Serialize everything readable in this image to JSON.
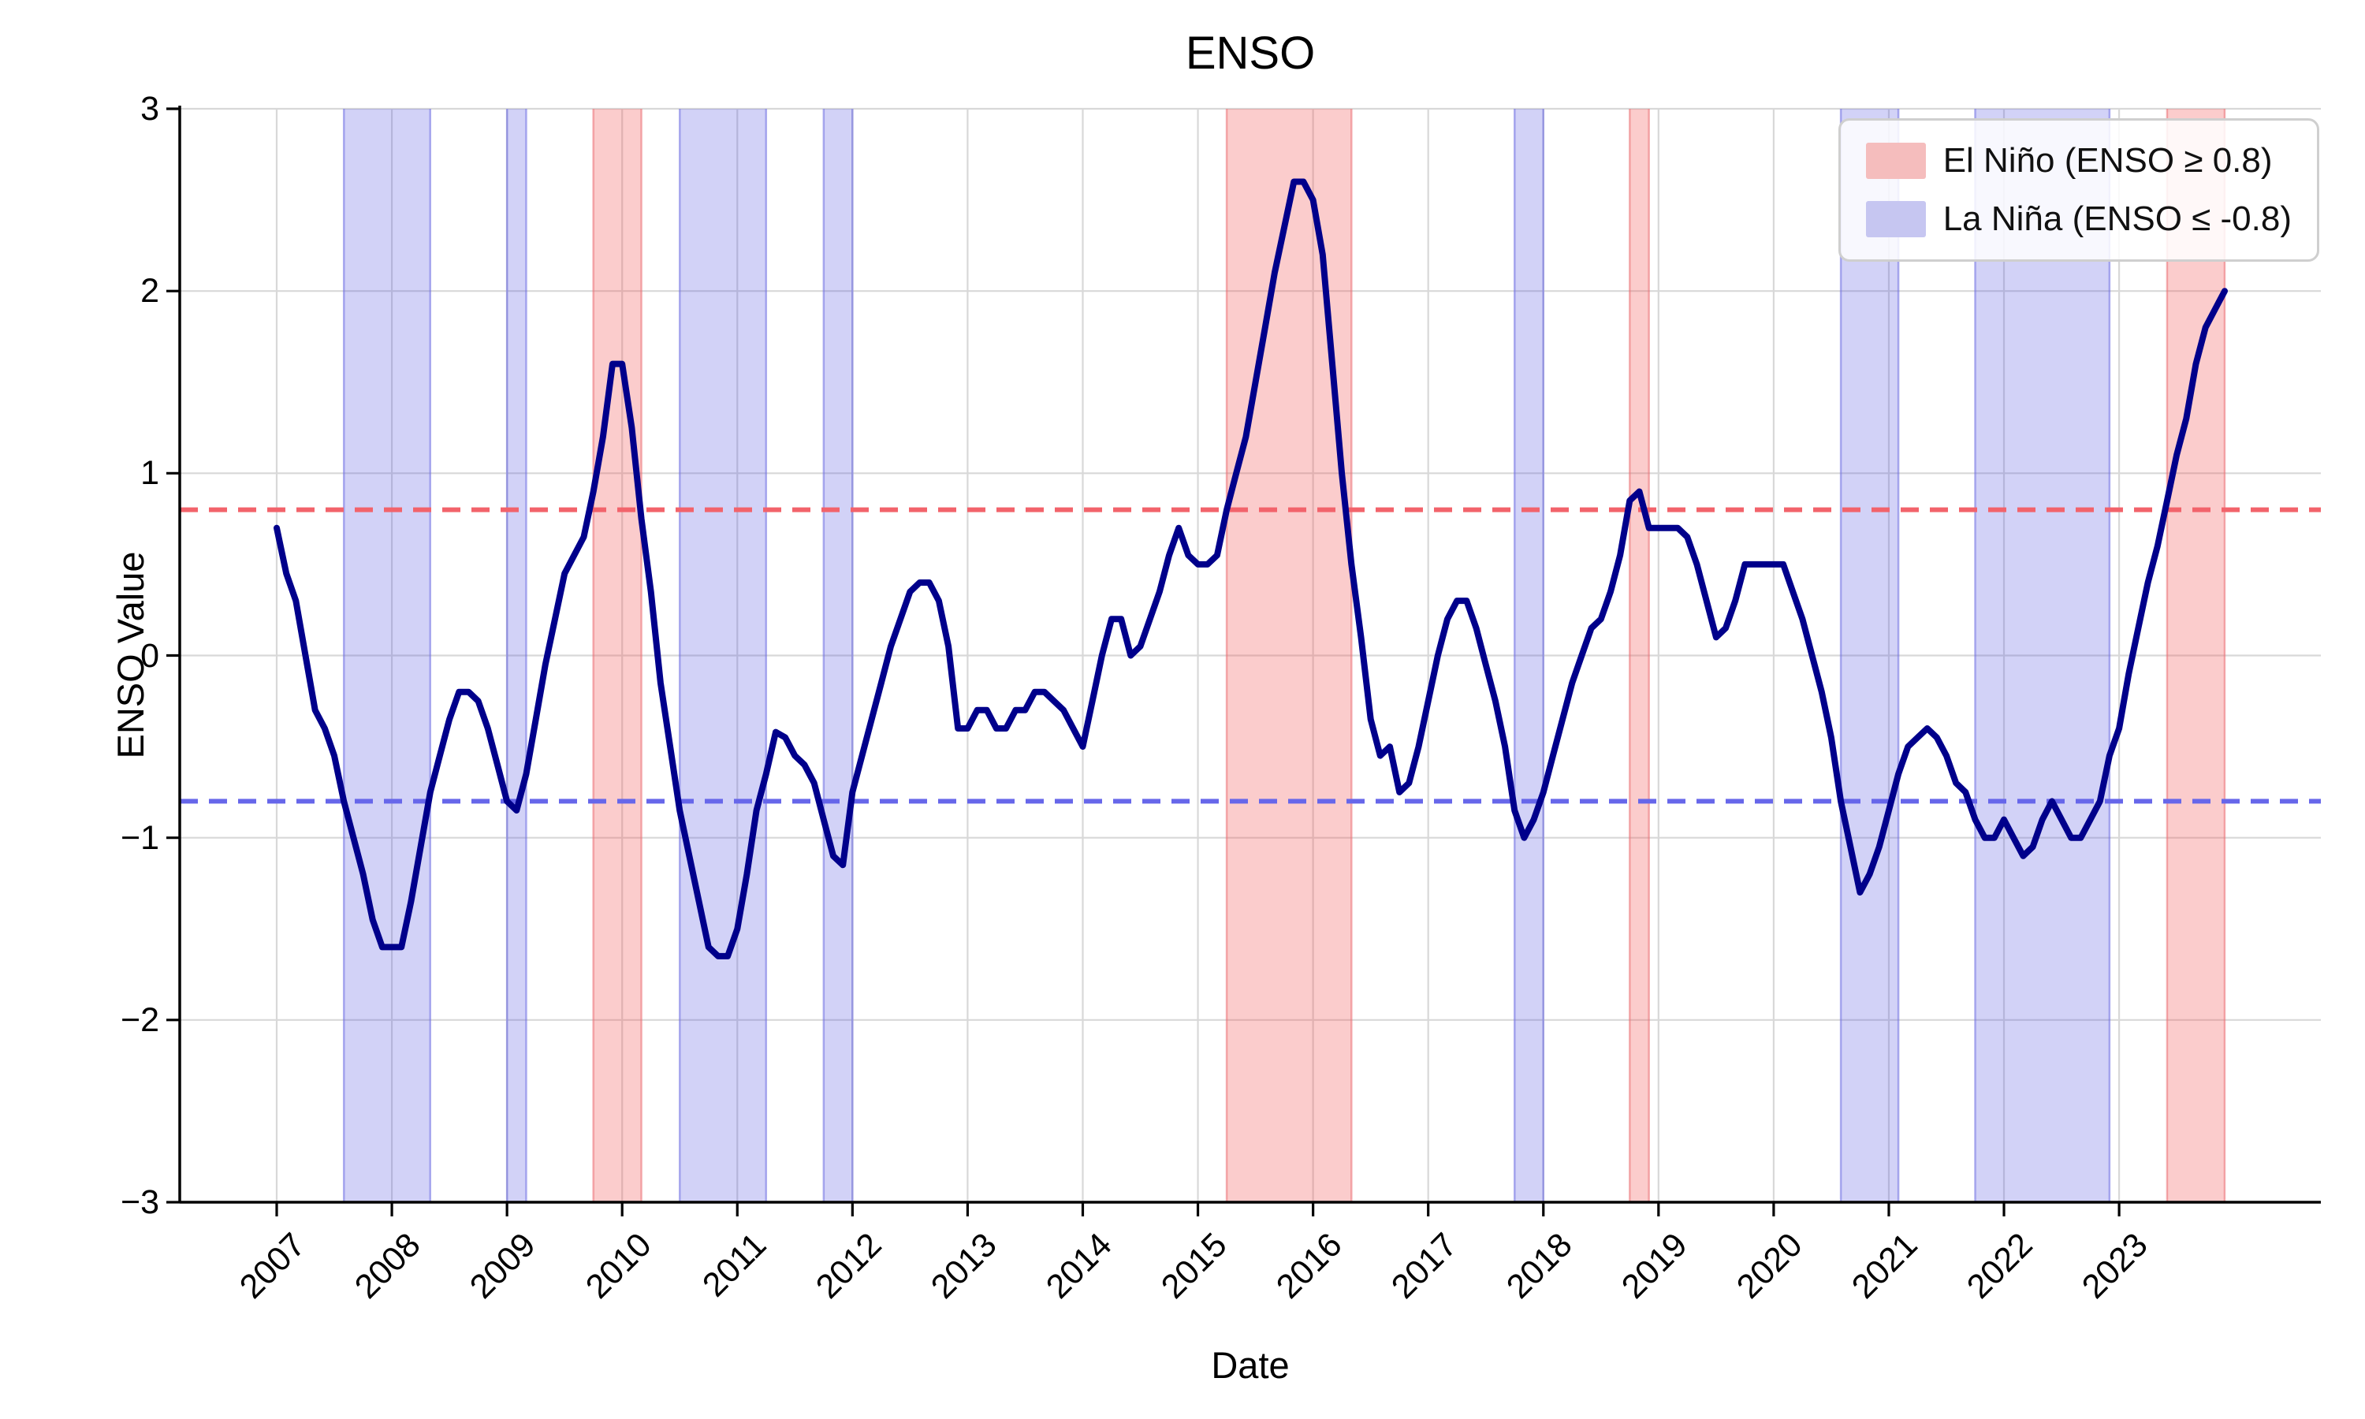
{
  "chart_data": {
    "type": "line",
    "title": "ENSO",
    "xlabel": "Date",
    "ylabel": "ENSO Value",
    "ylim": [
      -3,
      3
    ],
    "grid": true,
    "legend_position": "upper right",
    "start_month": "2007-01",
    "end_month": "2023-12",
    "monthly_values": [
      0.7,
      0.45,
      0.3,
      0.0,
      -0.3,
      -0.4,
      -0.55,
      -0.8,
      -1.0,
      -1.2,
      -1.45,
      -1.6,
      -1.6,
      -1.6,
      -1.35,
      -1.05,
      -0.75,
      -0.55,
      -0.35,
      -0.2,
      -0.2,
      -0.25,
      -0.4,
      -0.6,
      -0.8,
      -0.85,
      -0.65,
      -0.35,
      -0.05,
      0.2,
      0.45,
      0.55,
      0.65,
      0.9,
      1.2,
      1.6,
      1.6,
      1.25,
      0.75,
      0.35,
      -0.15,
      -0.5,
      -0.85,
      -1.1,
      -1.35,
      -1.6,
      -1.65,
      -1.65,
      -1.5,
      -1.2,
      -0.85,
      -0.65,
      -0.42,
      -0.45,
      -0.55,
      -0.6,
      -0.7,
      -0.9,
      -1.1,
      -1.15,
      -0.75,
      -0.55,
      -0.35,
      -0.15,
      0.05,
      0.2,
      0.35,
      0.4,
      0.4,
      0.3,
      0.05,
      -0.4,
      -0.4,
      -0.3,
      -0.3,
      -0.4,
      -0.4,
      -0.3,
      -0.3,
      -0.2,
      -0.2,
      -0.25,
      -0.3,
      -0.4,
      -0.5,
      -0.25,
      0.0,
      0.2,
      0.2,
      0.0,
      0.05,
      0.2,
      0.35,
      0.55,
      0.7,
      0.55,
      0.5,
      0.5,
      0.55,
      0.8,
      1.0,
      1.2,
      1.5,
      1.8,
      2.1,
      2.35,
      2.6,
      2.6,
      2.5,
      2.2,
      1.6,
      1.0,
      0.5,
      0.1,
      -0.35,
      -0.55,
      -0.5,
      -0.75,
      -0.7,
      -0.5,
      -0.25,
      0.0,
      0.2,
      0.3,
      0.3,
      0.15,
      -0.05,
      -0.25,
      -0.5,
      -0.85,
      -1.0,
      -0.9,
      -0.75,
      -0.55,
      -0.35,
      -0.15,
      0.0,
      0.15,
      0.2,
      0.35,
      0.55,
      0.85,
      0.9,
      0.7,
      0.7,
      0.7,
      0.7,
      0.65,
      0.5,
      0.3,
      0.1,
      0.15,
      0.3,
      0.5,
      0.5,
      0.5,
      0.5,
      0.5,
      0.35,
      0.2,
      0.0,
      -0.2,
      -0.45,
      -0.8,
      -1.05,
      -1.3,
      -1.2,
      -1.05,
      -0.85,
      -0.65,
      -0.5,
      -0.45,
      -0.4,
      -0.45,
      -0.55,
      -0.7,
      -0.75,
      -0.9,
      -1.0,
      -1.0,
      -0.9,
      -1.0,
      -1.1,
      -1.05,
      -0.9,
      -0.8,
      -0.9,
      -1.0,
      -1.0,
      -0.9,
      -0.8,
      -0.55,
      -0.4,
      -0.1,
      0.15,
      0.4,
      0.6,
      0.85,
      1.1,
      1.3,
      1.6,
      1.8,
      1.9,
      2.0
    ],
    "x_tick_labels": [
      "2007",
      "2008",
      "2009",
      "2010",
      "2011",
      "2012",
      "2013",
      "2014",
      "2015",
      "2016",
      "2017",
      "2018",
      "2019",
      "2020",
      "2021",
      "2022",
      "2023"
    ],
    "y_tick_values": [
      3,
      2,
      1,
      0,
      -1,
      -2,
      -3
    ],
    "y_tick_labels": [
      "3",
      "2",
      "1",
      "0",
      "−1",
      "−2",
      "−3"
    ],
    "thresholds": {
      "el_nino": 0.8,
      "la_nina": -0.8
    },
    "legend": [
      {
        "label": "El Niño (ENSO ≥ 0.8)",
        "color": "#f5bdbd"
      },
      {
        "label": "La Niña (ENSO ≤ -0.8)",
        "color": "#c6c6f1"
      }
    ],
    "colors": {
      "line": "#00008b",
      "el_nino_band": "rgba(242,85,85,0.30)",
      "el_nino_band_edge": "rgba(235,110,115,0.55)",
      "el_nino_dashed": "#f2636b",
      "la_nina_band": "rgba(90,90,225,0.27)",
      "la_nina_band_edge": "rgba(110,110,225,0.55)",
      "la_nina_dashed": "#6767ea",
      "grid": "#d8d8d8",
      "axis": "#000000"
    }
  }
}
